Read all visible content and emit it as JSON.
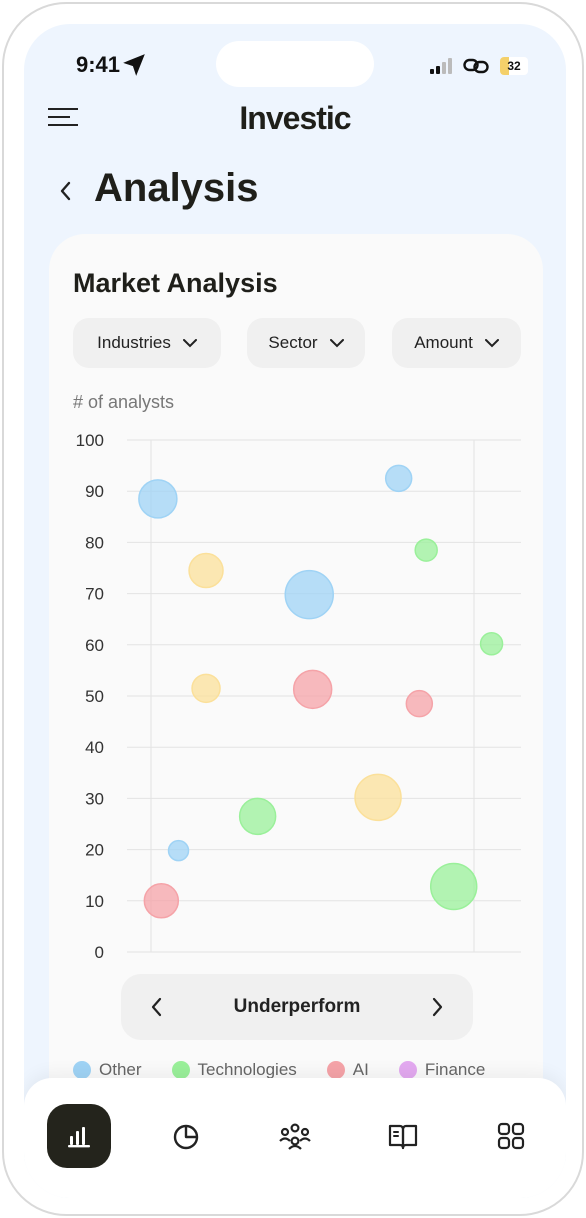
{
  "status": {
    "time": "9:41",
    "battery": "32"
  },
  "header": {
    "brand": "Investic",
    "title": "Analysis"
  },
  "card": {
    "title": "Market Analysis",
    "filters": [
      "Industries",
      "Sector",
      "Amount"
    ],
    "y_axis_title": "# of analysts"
  },
  "pager": {
    "label": "Underperform"
  },
  "colors": {
    "Other": "#9fd3f5",
    "Technologies": "#9af09a",
    "AI": "#f5a3a8",
    "Finance": "#e3a9f0",
    "Yellow": "#fbe09a"
  },
  "legend": [
    {
      "name": "Other",
      "color": "#9fd3f5"
    },
    {
      "name": "Technologies",
      "color": "#9af09a"
    },
    {
      "name": "AI",
      "color": "#f5a3a8"
    },
    {
      "name": "Finance",
      "color": "#e3a9f0"
    }
  ],
  "chart_data": {
    "type": "scatter",
    "xlabel": "",
    "ylabel": "# of analysts",
    "ylim": [
      0,
      100
    ],
    "yticks": [
      0,
      10,
      20,
      30,
      40,
      50,
      60,
      70,
      80,
      90,
      100
    ],
    "grid": true,
    "points": [
      {
        "series": "Other",
        "x": 0.02,
        "y": 88.5,
        "size": 19
      },
      {
        "series": "Other",
        "x": 0.46,
        "y": 69.8,
        "size": 24
      },
      {
        "series": "Other",
        "x": 0.72,
        "y": 92.5,
        "size": 13
      },
      {
        "series": "Other",
        "x": 0.08,
        "y": 19.8,
        "size": 10
      },
      {
        "series": "Yellow",
        "x": 0.16,
        "y": 74.5,
        "size": 17
      },
      {
        "series": "Yellow",
        "x": 0.16,
        "y": 51.5,
        "size": 14
      },
      {
        "series": "Yellow",
        "x": 0.66,
        "y": 30.2,
        "size": 23
      },
      {
        "series": "Technologies",
        "x": 0.8,
        "y": 78.5,
        "size": 11
      },
      {
        "series": "Technologies",
        "x": 0.99,
        "y": 60.2,
        "size": 11
      },
      {
        "series": "Technologies",
        "x": 0.31,
        "y": 26.5,
        "size": 18
      },
      {
        "series": "Technologies",
        "x": 0.88,
        "y": 12.8,
        "size": 23
      },
      {
        "series": "AI",
        "x": 0.47,
        "y": 51.3,
        "size": 19
      },
      {
        "series": "AI",
        "x": 0.78,
        "y": 48.5,
        "size": 13
      },
      {
        "series": "AI",
        "x": 0.03,
        "y": 10.0,
        "size": 17
      }
    ]
  },
  "nav": [
    {
      "name": "analytics",
      "icon": "bar-chart-icon",
      "active": true
    },
    {
      "name": "portfolio",
      "icon": "pie-chart-icon",
      "active": false
    },
    {
      "name": "community",
      "icon": "people-icon",
      "active": false
    },
    {
      "name": "learn",
      "icon": "book-icon",
      "active": false
    },
    {
      "name": "apps",
      "icon": "grid-icon",
      "active": false
    }
  ]
}
